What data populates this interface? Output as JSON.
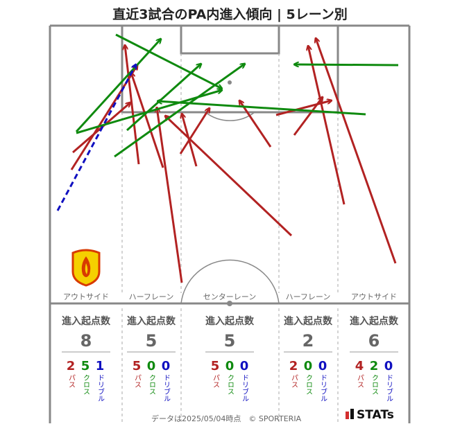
{
  "title": "直近3試合のPA内進入傾向 | 5レーン別",
  "lanes": [
    {
      "name": "アウトサイド",
      "header": "進入起点数",
      "count": "8",
      "breakdown": [
        {
          "value": "2",
          "label": "パス"
        },
        {
          "value": "5",
          "label": "クロス"
        },
        {
          "value": "1",
          "label": "ドリブル"
        }
      ]
    },
    {
      "name": "ハーフレーン",
      "header": "進入起点数",
      "count": "5",
      "breakdown": [
        {
          "value": "5",
          "label": "パス"
        },
        {
          "value": "0",
          "label": "クロス"
        },
        {
          "value": "0",
          "label": "ドリブル"
        }
      ]
    },
    {
      "name": "センターレーン",
      "header": "進入起点数",
      "count": "5",
      "breakdown": [
        {
          "value": "5",
          "label": "パス"
        },
        {
          "value": "0",
          "label": "クロス"
        },
        {
          "value": "0",
          "label": "ドリブル"
        }
      ]
    },
    {
      "name": "ハーフレーン",
      "header": "進入起点数",
      "count": "2",
      "breakdown": [
        {
          "value": "2",
          "label": "パス"
        },
        {
          "value": "0",
          "label": "クロス"
        },
        {
          "value": "0",
          "label": "ドリブル"
        }
      ]
    },
    {
      "name": "アウトサイド",
      "header": "進入起点数",
      "count": "6",
      "breakdown": [
        {
          "value": "4",
          "label": "パス"
        },
        {
          "value": "2",
          "label": "クロス"
        },
        {
          "value": "0",
          "label": "ドリブル"
        }
      ]
    }
  ],
  "colors": {
    "pass": "#b22222",
    "cross": "#0f8a0f",
    "dribble": "#1010c0",
    "line": "#888888"
  },
  "footer": "データは2025/05/04時点　© SPORTERIA",
  "brand": "STATs",
  "crest_icon": "team-crest-icon"
}
